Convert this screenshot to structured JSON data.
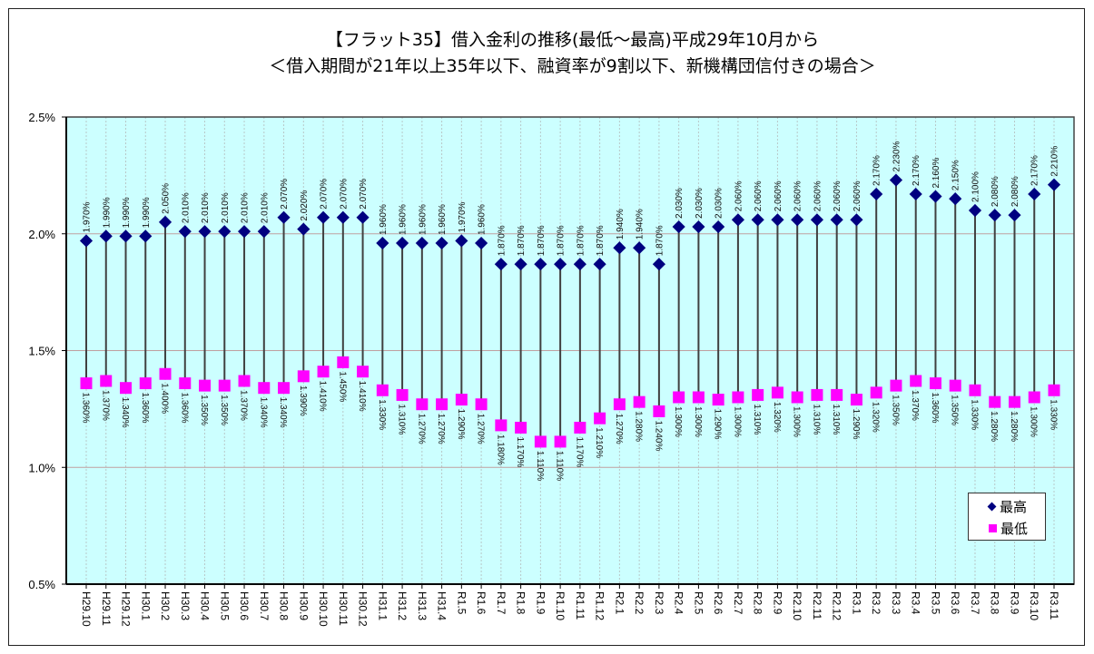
{
  "chart_data": {
    "type": "line",
    "title": "【フラット35】借入金利の推移(最低～最高)平成29年10月から",
    "subtitle": "＜借入期間が21年以上35年以下、融資率が9割以下、新機構団信付きの場合＞",
    "xlabel": "",
    "ylabel": "",
    "ylim": [
      0.5,
      2.5
    ],
    "yticks": [
      "0.5%",
      "1.0%",
      "1.5%",
      "2.0%",
      "2.5%"
    ],
    "ytick_values": [
      0.5,
      1.0,
      1.5,
      2.0,
      2.5
    ],
    "grid": true,
    "legend_position": "bottom-right",
    "categories": [
      "H29.10",
      "H29.11",
      "H29.12",
      "H30.1",
      "H30.2",
      "H30.3",
      "H30.4",
      "H30.5",
      "H30.6",
      "H30.7",
      "H30.8",
      "H30.9",
      "H30.10",
      "H30.11",
      "H30.12",
      "H31.1",
      "H31.2",
      "H31.3",
      "H31.4",
      "R1.5",
      "R1.6",
      "R1.7",
      "R1.8",
      "R1.9",
      "R1.10",
      "R1.11",
      "R1.12",
      "R2.1",
      "R2.2",
      "R2.3",
      "R2.4",
      "R2.5",
      "R2.6",
      "R2.7",
      "R2.8",
      "R2.9",
      "R2.10",
      "R2.11",
      "R2.12",
      "R3.1",
      "R3.2",
      "R3.3",
      "R3.4",
      "R3.5",
      "R3.6",
      "R3.7",
      "R3.8",
      "R3.9",
      "R3.10",
      "R3.11"
    ],
    "series": [
      {
        "name": "最高",
        "marker": "diamond",
        "color": "#000080",
        "values": [
          1.97,
          1.99,
          1.99,
          1.99,
          2.05,
          2.01,
          2.01,
          2.01,
          2.01,
          2.01,
          2.07,
          2.02,
          2.07,
          2.07,
          2.07,
          1.96,
          1.96,
          1.96,
          1.96,
          1.97,
          1.96,
          1.87,
          1.87,
          1.87,
          1.87,
          1.87,
          1.87,
          1.94,
          1.94,
          1.87,
          2.03,
          2.03,
          2.03,
          2.06,
          2.06,
          2.06,
          2.06,
          2.06,
          2.06,
          2.06,
          2.17,
          2.23,
          2.17,
          2.16,
          2.15,
          2.1,
          2.08,
          2.08,
          2.17,
          2.21
        ]
      },
      {
        "name": "最低",
        "marker": "square",
        "color": "#ff00ff",
        "values": [
          1.36,
          1.37,
          1.34,
          1.36,
          1.4,
          1.36,
          1.35,
          1.35,
          1.37,
          1.34,
          1.34,
          1.39,
          1.41,
          1.45,
          1.41,
          1.33,
          1.31,
          1.27,
          1.27,
          1.29,
          1.27,
          1.18,
          1.17,
          1.11,
          1.11,
          1.17,
          1.21,
          1.27,
          1.28,
          1.24,
          1.3,
          1.3,
          1.29,
          1.3,
          1.31,
          1.32,
          1.3,
          1.31,
          1.31,
          1.29,
          1.32,
          1.35,
          1.37,
          1.36,
          1.35,
          1.33,
          1.28,
          1.28,
          1.3,
          1.33
        ]
      }
    ],
    "data_label_format": "0.000%",
    "colors": {
      "plot_bg": "#ccffff",
      "gridline": "#c0a0a0",
      "connector": "#404040"
    }
  }
}
